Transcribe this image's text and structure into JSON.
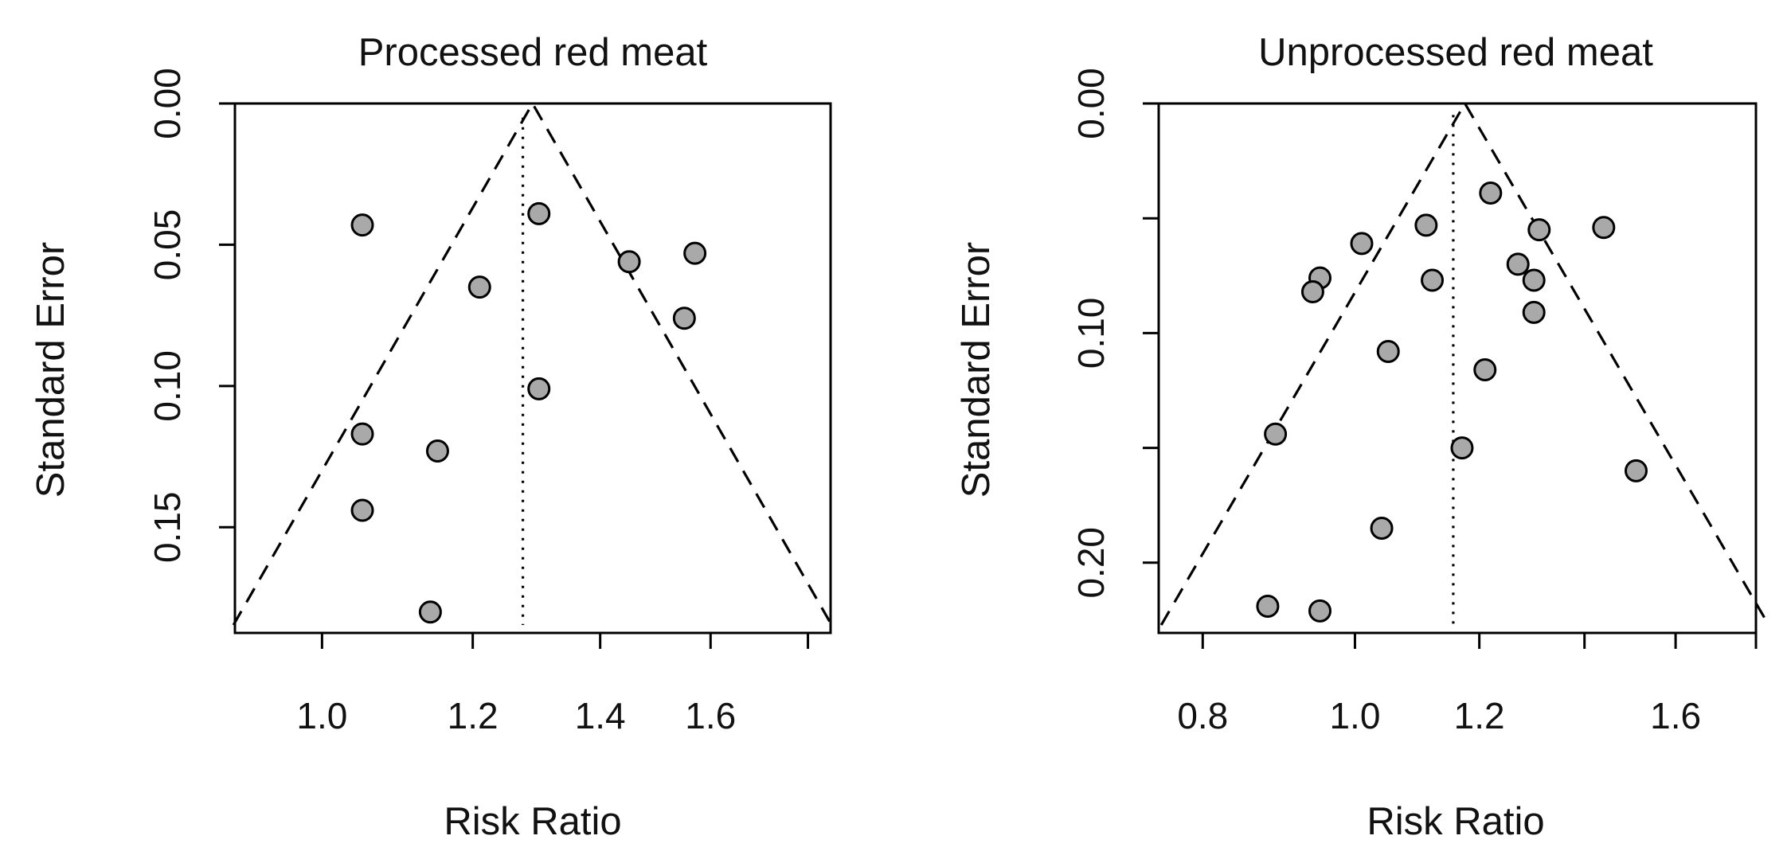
{
  "chart_data": [
    {
      "type": "scatter",
      "title": "Processed red meat",
      "xlabel": "Risk Ratio",
      "ylabel": "Standard Error",
      "xscale": "log",
      "yaxis_inverted": true,
      "xlim": [
        0.9,
        1.85
      ],
      "ylim": [
        0.1874,
        0
      ],
      "xticks": [
        1.0,
        1.2,
        1.4,
        1.6,
        1.8
      ],
      "xtick_labels": [
        "1.0",
        "1.2",
        "1.4",
        "1.6",
        ""
      ],
      "yticks": [
        0.0,
        0.05,
        0.1,
        0.15
      ],
      "ytick_labels": [
        "0.00",
        "0.05",
        "0.10",
        "0.15"
      ],
      "pooled_estimate": 1.275,
      "funnel_apex": 1.29,
      "points": [
        {
          "x": 1.05,
          "y": 0.043
        },
        {
          "x": 1.3,
          "y": 0.039
        },
        {
          "x": 1.45,
          "y": 0.056
        },
        {
          "x": 1.57,
          "y": 0.053
        },
        {
          "x": 1.21,
          "y": 0.065
        },
        {
          "x": 1.55,
          "y": 0.076
        },
        {
          "x": 1.3,
          "y": 0.101
        },
        {
          "x": 1.05,
          "y": 0.117
        },
        {
          "x": 1.15,
          "y": 0.123
        },
        {
          "x": 1.05,
          "y": 0.144
        },
        {
          "x": 1.14,
          "y": 0.18
        }
      ],
      "grid": false,
      "legend": "none"
    },
    {
      "type": "scatter",
      "title": "Unprocessed red meat",
      "xlabel": "Risk Ratio",
      "ylabel": "Standard Error",
      "xscale": "log",
      "yaxis_inverted": true,
      "xlim": [
        0.75,
        1.8
      ],
      "ylim": [
        0.2306,
        0
      ],
      "xticks": [
        0.8,
        1.0,
        1.2,
        1.4,
        1.6,
        1.8
      ],
      "xtick_labels": [
        "0.8",
        "1.0",
        "1.2",
        "",
        "1.6",
        ""
      ],
      "yticks": [
        0.0,
        0.05,
        0.1,
        0.15,
        0.2
      ],
      "ytick_labels": [
        "0.00",
        "",
        "0.10",
        "",
        "0.20"
      ],
      "pooled_estimate": 1.155,
      "funnel_apex": 1.175,
      "points": [
        {
          "x": 1.22,
          "y": 0.039
        },
        {
          "x": 1.11,
          "y": 0.053
        },
        {
          "x": 1.31,
          "y": 0.055
        },
        {
          "x": 1.44,
          "y": 0.054
        },
        {
          "x": 1.01,
          "y": 0.061
        },
        {
          "x": 1.27,
          "y": 0.07
        },
        {
          "x": 0.95,
          "y": 0.076
        },
        {
          "x": 1.3,
          "y": 0.077
        },
        {
          "x": 1.12,
          "y": 0.077
        },
        {
          "x": 0.94,
          "y": 0.082
        },
        {
          "x": 1.3,
          "y": 0.091
        },
        {
          "x": 1.05,
          "y": 0.108
        },
        {
          "x": 1.21,
          "y": 0.116
        },
        {
          "x": 0.89,
          "y": 0.144
        },
        {
          "x": 1.17,
          "y": 0.15
        },
        {
          "x": 1.51,
          "y": 0.16
        },
        {
          "x": 1.04,
          "y": 0.185
        },
        {
          "x": 0.88,
          "y": 0.219
        },
        {
          "x": 0.95,
          "y": 0.221
        }
      ],
      "grid": false,
      "legend": "none"
    }
  ]
}
